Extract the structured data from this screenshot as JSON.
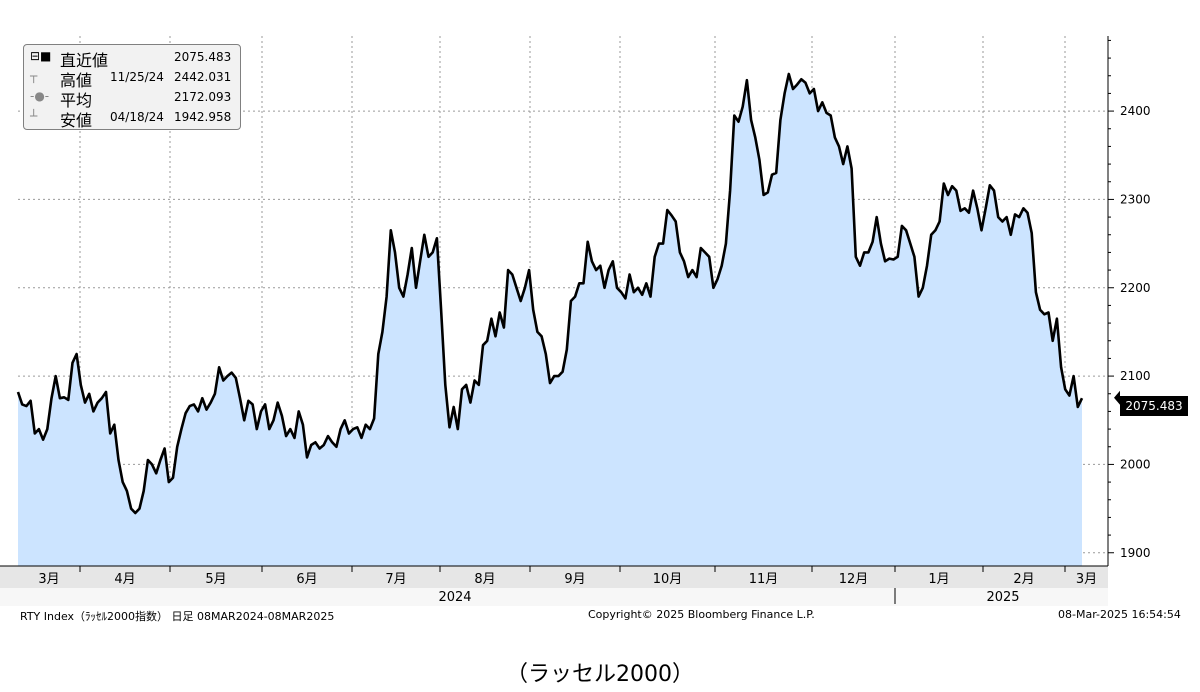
{
  "chart_data": {
    "type": "area",
    "ticker": "RTY Index",
    "yticks": [
      1900,
      2000,
      2100,
      2200,
      2300,
      2400
    ],
    "ylim": [
      1885,
      2485
    ],
    "grid": true,
    "months": [
      "3月",
      "4月",
      "5月",
      "6月",
      "7月",
      "8月",
      "9月",
      "10月",
      "11月",
      "12月",
      "1月",
      "2月",
      "3月"
    ],
    "years": [
      "2024",
      "2025"
    ],
    "last_value_tag": "2075.483",
    "legend": [
      {
        "mark": "⊟■",
        "label": "直近値",
        "date": "",
        "value": "2075.483"
      },
      {
        "mark": "┬",
        "label": "高値",
        "date": "11/25/24",
        "value": "2442.031"
      },
      {
        "mark": "-●-",
        "label": "平均",
        "date": "",
        "value": "2172.093"
      },
      {
        "mark": "┴",
        "label": "安値",
        "date": "04/18/24",
        "value": "1942.958"
      }
    ],
    "series": [
      {
        "values": [
          2082,
          2068,
          2066,
          2072,
          2035,
          2040,
          2028,
          2040,
          2075,
          2100,
          2075,
          2076,
          2073,
          2115,
          2125,
          2090,
          2070,
          2080,
          2060,
          2070,
          2075,
          2082,
          2035,
          2045,
          2005,
          1980,
          1970,
          1950,
          1945,
          1950,
          1970,
          2005,
          2000,
          1990,
          2005,
          2018,
          1980,
          1985,
          2020,
          2040,
          2058,
          2066,
          2068,
          2060,
          2075,
          2062,
          2070,
          2080,
          2110,
          2095,
          2100,
          2104,
          2098,
          2075,
          2050,
          2072,
          2068,
          2040,
          2060,
          2068,
          2040,
          2050,
          2070,
          2055,
          2032,
          2040,
          2030,
          2060,
          2045,
          2008,
          2022,
          2025,
          2018,
          2022,
          2032,
          2025,
          2020,
          2040,
          2050,
          2035,
          2040,
          2042,
          2030,
          2045,
          2040,
          2052,
          2125,
          2150,
          2190,
          2265,
          2240,
          2200,
          2190,
          2215,
          2245,
          2200,
          2230,
          2260,
          2235,
          2240,
          2256,
          2175,
          2090,
          2042,
          2065,
          2040,
          2085,
          2090,
          2070,
          2095,
          2090,
          2135,
          2140,
          2165,
          2145,
          2172,
          2155,
          2220,
          2215,
          2200,
          2185,
          2200,
          2220,
          2175,
          2150,
          2145,
          2125,
          2092,
          2100,
          2100,
          2105,
          2130,
          2185,
          2190,
          2205,
          2205,
          2252,
          2230,
          2220,
          2225,
          2200,
          2220,
          2230,
          2200,
          2195,
          2188,
          2215,
          2195,
          2200,
          2192,
          2205,
          2190,
          2235,
          2250,
          2250,
          2288,
          2282,
          2275,
          2240,
          2230,
          2212,
          2220,
          2212,
          2245,
          2240,
          2235,
          2200,
          2210,
          2225,
          2250,
          2310,
          2395,
          2388,
          2405,
          2435,
          2390,
          2370,
          2345,
          2305,
          2308,
          2328,
          2330,
          2390,
          2420,
          2442,
          2425,
          2430,
          2436,
          2432,
          2420,
          2425,
          2400,
          2410,
          2398,
          2395,
          2370,
          2360,
          2340,
          2360,
          2335,
          2235,
          2225,
          2240,
          2240,
          2252,
          2280,
          2250,
          2230,
          2233,
          2232,
          2235,
          2270,
          2265,
          2250,
          2235,
          2190,
          2200,
          2225,
          2260,
          2265,
          2275,
          2318,
          2305,
          2315,
          2310,
          2287,
          2290,
          2285,
          2310,
          2290,
          2265,
          2290,
          2316,
          2310,
          2280,
          2275,
          2280,
          2260,
          2283,
          2280,
          2290,
          2285,
          2262,
          2195,
          2175,
          2170,
          2172,
          2140,
          2165,
          2110,
          2085,
          2078,
          2100,
          2065,
          2075
        ]
      }
    ],
    "footer_left": "RTY Index（ﾗｯｾﾙ2000指数） 日足 08MAR2024-08MAR2025",
    "footer_center": "Copyright© 2025 Bloomberg Finance L.P.",
    "footer_right": "08-Mar-2025 16:54:54",
    "caption": "（ラッセル2000）"
  }
}
